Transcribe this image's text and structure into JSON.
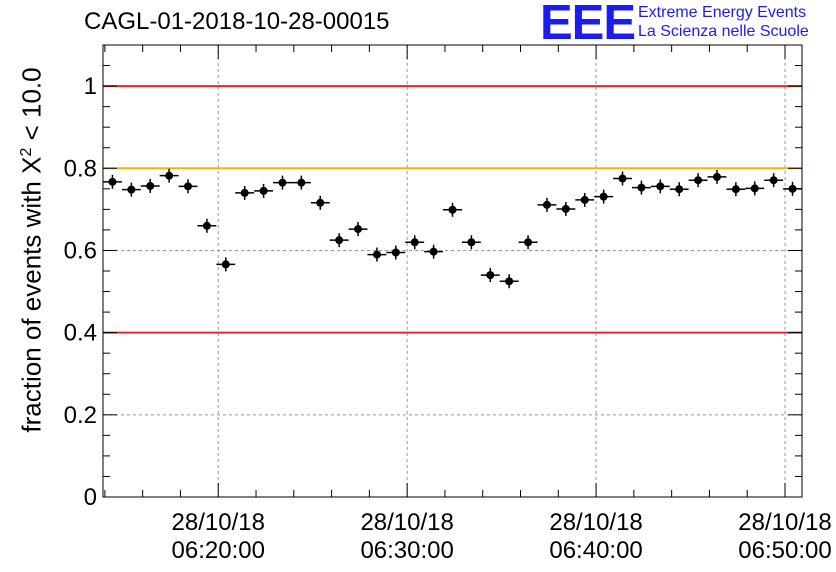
{
  "header": {
    "title": "CAGL-01-2018-10-28-00015",
    "logo_letters": "EEE",
    "logo_line1": "Extreme Energy Events",
    "logo_line2": "La Scienza nelle Scuole"
  },
  "colors": {
    "logo_blue": "#1c1cf0",
    "red_line": "#e8262b",
    "orange_line": "#f7b500",
    "grid": "#9a9a9a",
    "marker": "#000000"
  },
  "chart_data": {
    "type": "scatter",
    "title": "CAGL-01-2018-10-28-00015",
    "ylabel_prefix": "fraction of events with ",
    "ylabel_symbol": "X",
    "ylabel_sup": "2",
    "ylabel_suffix": " < 10.0",
    "ylim": [
      0,
      1.1
    ],
    "xlim_minutes_after_0610": [
      3.9,
      40.9
    ],
    "bin_width_minutes": 1,
    "grid": true,
    "y_ticks": [
      "0",
      "0.2",
      "0.4",
      "0.6",
      "0.8",
      "1"
    ],
    "y_tick_values": [
      0,
      0.2,
      0.4,
      0.6,
      0.8,
      1.0
    ],
    "x_ticks": [
      {
        "date": "28/10/18",
        "time": "06:20:00",
        "minute": 10
      },
      {
        "date": "28/10/18",
        "time": "06:30:00",
        "minute": 20
      },
      {
        "date": "28/10/18",
        "time": "06:40:00",
        "minute": 30
      },
      {
        "date": "28/10/18",
        "time": "06:50:00",
        "minute": 40
      }
    ],
    "reference_lines": [
      {
        "y": 1.0,
        "color": "red"
      },
      {
        "y": 0.8,
        "color": "orange"
      },
      {
        "y": 0.4,
        "color": "red"
      }
    ],
    "x_minutes": [
      4.4,
      5.4,
      6.4,
      7.4,
      8.4,
      9.4,
      10.4,
      11.4,
      12.4,
      13.4,
      14.4,
      15.4,
      16.4,
      17.4,
      18.4,
      19.4,
      20.4,
      21.4,
      22.4,
      23.4,
      24.4,
      25.4,
      26.4,
      27.4,
      28.4,
      29.4,
      30.4,
      31.4,
      32.4,
      33.4,
      34.4,
      35.4,
      36.4,
      37.4,
      38.4,
      39.4,
      40.4
    ],
    "values": [
      0.767,
      0.748,
      0.757,
      0.782,
      0.756,
      0.66,
      0.566,
      0.74,
      0.745,
      0.765,
      0.765,
      0.716,
      0.625,
      0.652,
      0.59,
      0.595,
      0.62,
      0.597,
      0.699,
      0.62,
      0.54,
      0.525,
      0.62,
      0.711,
      0.701,
      0.723,
      0.731,
      0.775,
      0.753,
      0.756,
      0.749,
      0.771,
      0.779,
      0.749,
      0.751,
      0.771,
      0.75
    ]
  }
}
